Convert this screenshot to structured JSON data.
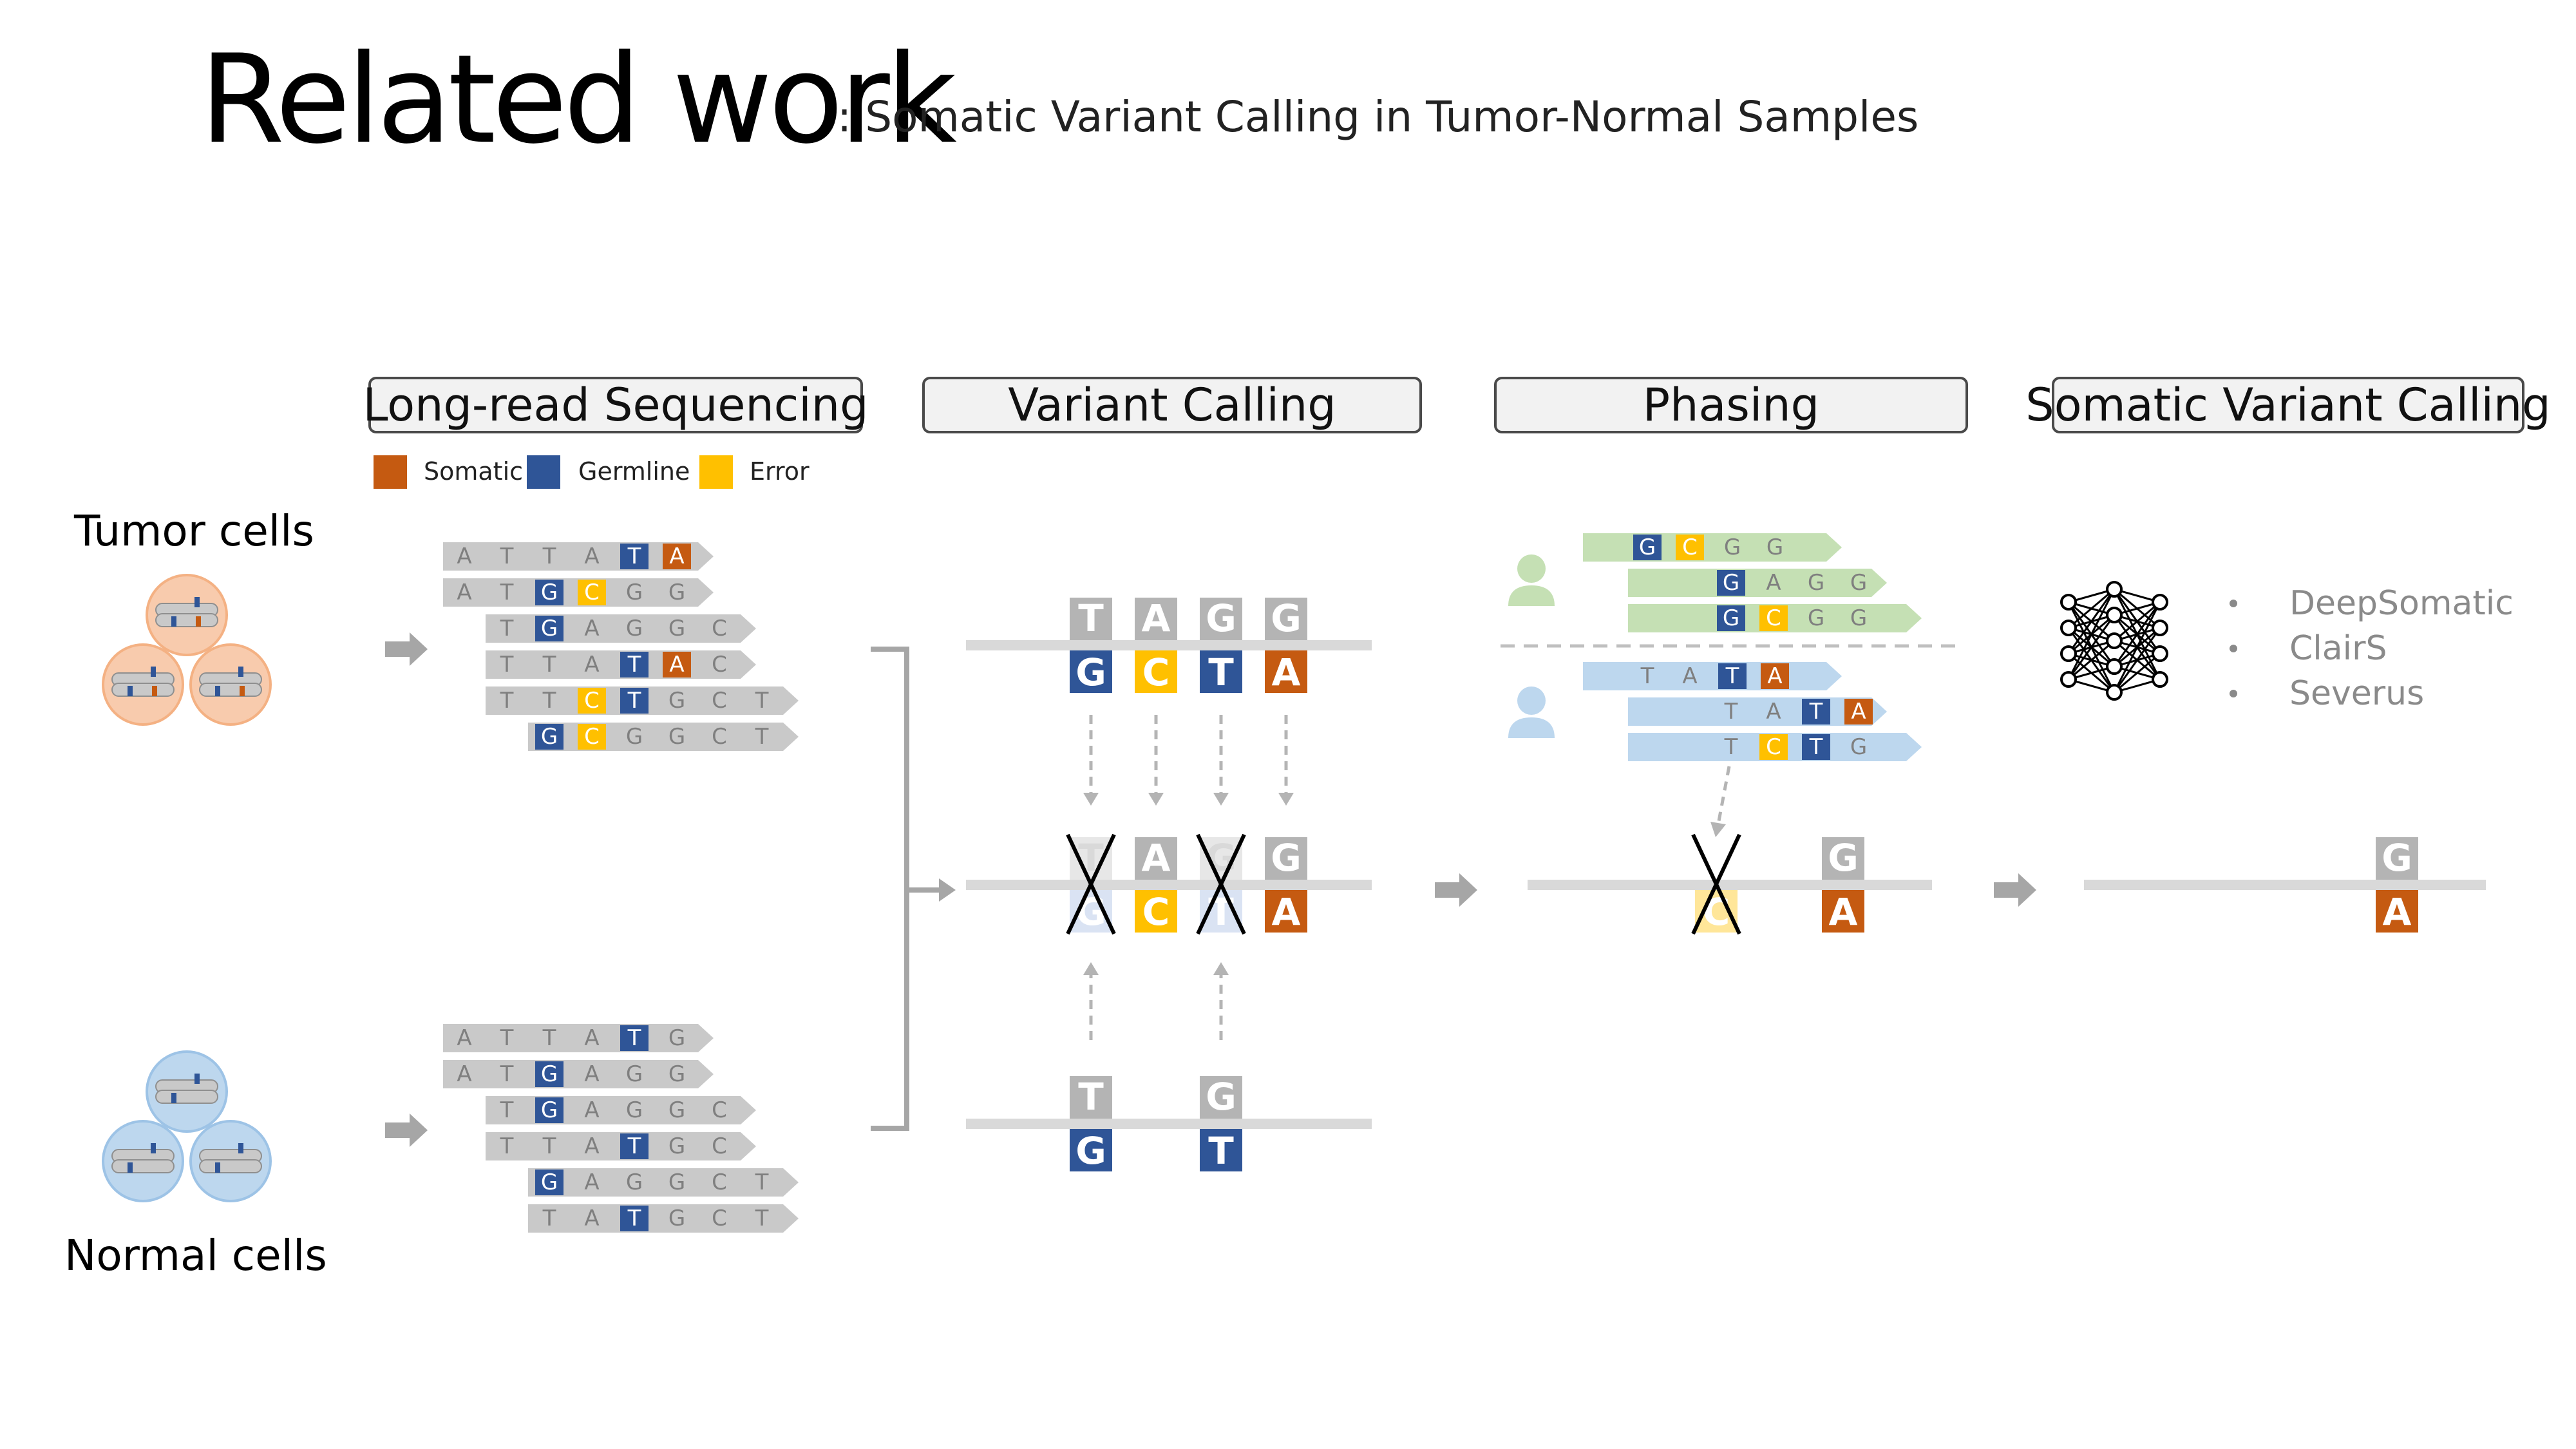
{
  "title": "Related work",
  "subtitle": ": Somatic Variant Calling in Tumor-Normal Samples",
  "stages": [
    "Long-read Sequencing",
    "Variant Calling",
    "Phasing",
    "Somatic Variant Calling"
  ],
  "legend": [
    {
      "label": "Somatic",
      "color": "#c55a11"
    },
    {
      "label": "Germline",
      "color": "#2f5597"
    },
    {
      "label": "Error",
      "color": "#ffc000"
    }
  ],
  "cells": {
    "tumor": "Tumor cells",
    "normal": "Normal cells"
  },
  "tools": [
    "DeepSomatic",
    "ClairS",
    "Severus"
  ],
  "colors": {
    "somatic": "#c55a11",
    "germline": "#2f5597",
    "error": "#ffc000",
    "ref": "#b4b4b4",
    "read_bg": "#c9c9c9",
    "track": "#d9d9d9",
    "haplo1": "#c5e0b4",
    "haplo2": "#bdd7ee",
    "tumor_cell": "#f8cbad",
    "normal_cell": "#bdd7ee"
  },
  "tumor_reads": [
    [
      "A",
      "T",
      "T",
      "A",
      "T:g",
      "A:s"
    ],
    [
      "A",
      "T",
      "G:g",
      "C:e",
      "G",
      "G"
    ],
    [
      "",
      "T",
      "G:g",
      "A",
      "G",
      "G",
      "C"
    ],
    [
      "",
      "T",
      "T",
      "A",
      "T:g",
      "A:s",
      "C"
    ],
    [
      "",
      "T",
      "T",
      "C:e",
      "T:g",
      "G",
      "C",
      "T"
    ],
    [
      "",
      "",
      "G:g",
      "C:e",
      "G",
      "G",
      "C",
      "T"
    ]
  ],
  "normal_reads": [
    [
      "A",
      "T",
      "T",
      "A",
      "T:g",
      "G"
    ],
    [
      "A",
      "T",
      "G:g",
      "A",
      "G",
      "G"
    ],
    [
      "",
      "T",
      "G:g",
      "A",
      "G",
      "G",
      "C"
    ],
    [
      "",
      "T",
      "T",
      "A",
      "T:g",
      "G",
      "C"
    ],
    [
      "",
      "",
      "G:g",
      "A",
      "G",
      "G",
      "C",
      "T"
    ],
    [
      "",
      "",
      "T",
      "A",
      "T:g",
      "G",
      "C",
      "T"
    ]
  ],
  "tumor_calls": {
    "ref": [
      "T",
      "A",
      "G",
      "G"
    ],
    "alt": [
      "G:g",
      "C:e",
      "T:g",
      "A:s"
    ]
  },
  "merged_calls": {
    "ref": [
      "T",
      "A",
      "G",
      "G"
    ],
    "alt": [
      "G:g",
      "C:e",
      "T:g",
      "A:s"
    ],
    "crossed": [
      0,
      2
    ]
  },
  "normal_calls": {
    "ref": [
      "T",
      "",
      "G",
      ""
    ],
    "alt": [
      "G:g",
      "",
      "T:g",
      ""
    ]
  },
  "phasing_h1": [
    [
      "G:g",
      "C:e",
      "G",
      "G"
    ],
    [
      "G:g",
      "A",
      "G",
      "G"
    ],
    [
      "G:g",
      "C:e",
      "G",
      "G"
    ]
  ],
  "phasing_h2": [
    [
      "T",
      "A",
      "T:g",
      "A:s"
    ],
    [
      "T",
      "A",
      "T:g",
      "A:s"
    ],
    [
      "T",
      "C:e",
      "T:g",
      "G"
    ]
  ],
  "phased_calls": {
    "ref": [
      "",
      "G"
    ],
    "alt": [
      "C:e",
      "A:s"
    ],
    "crossed": [
      0
    ]
  },
  "final_calls": {
    "ref": [
      "G"
    ],
    "alt": [
      "A:s"
    ]
  }
}
